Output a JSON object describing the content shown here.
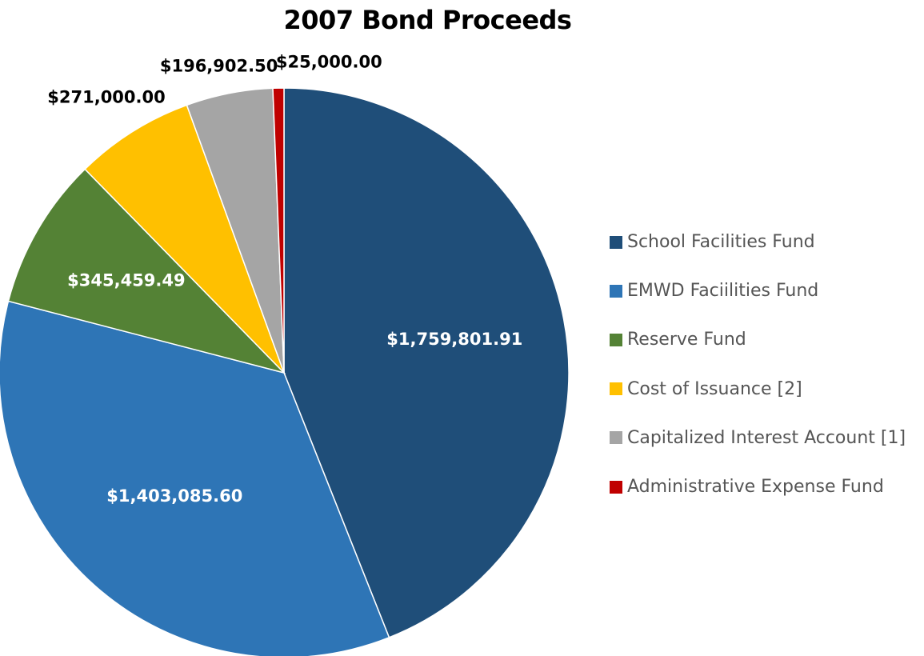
{
  "chart_data": {
    "type": "pie",
    "title": "2007 Bond Proceeds",
    "slices": [
      {
        "name": "School Facilities Fund",
        "value": 1759801.91,
        "label": "$1,759,801.91",
        "color": "#1f4e79",
        "label_color": "#ffffff"
      },
      {
        "name": "EMWD Faciilities Fund",
        "value": 1403085.6,
        "label": "$1,403,085.60",
        "color": "#2e75b6",
        "label_color": "#ffffff"
      },
      {
        "name": "Reserve Fund",
        "value": 345459.49,
        "label": "$345,459.49",
        "color": "#548235",
        "label_color": "#ffffff"
      },
      {
        "name": "Cost of Issuance [2]",
        "value": 271000.0,
        "label": "$271,000.00",
        "color": "#ffc000",
        "label_color": "#000000"
      },
      {
        "name": "Capitalized Interest Account [1]",
        "value": 196902.5,
        "label": "$196,902.50",
        "color": "#a5a5a5",
        "label_color": "#000000"
      },
      {
        "name": "Administrative Expense Fund",
        "value": 25000.0,
        "label": "$25,000.00",
        "color": "#c00000",
        "label_color": "#000000"
      }
    ],
    "legend_position": "right"
  }
}
